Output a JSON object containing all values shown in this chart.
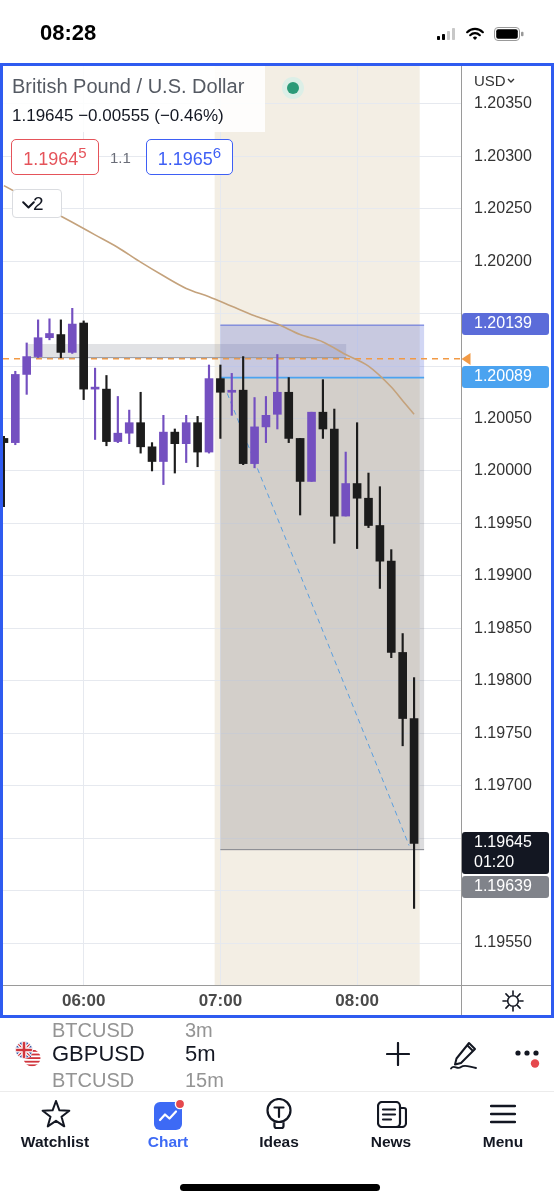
{
  "chart_data": {
    "type": "candlestick",
    "title": "British Pound / U.S. Dollar",
    "subtitle": "1.19645 −0.00555 (−0.46%)",
    "ylabel": "USD",
    "x": [
      5.4167,
      5.5,
      5.5833,
      5.6667,
      5.75,
      5.8333,
      5.9167,
      6,
      6.0833,
      6.1667,
      6.25,
      6.3333,
      6.4167,
      6.5,
      6.5833,
      6.6667,
      6.75,
      6.8333,
      6.9167,
      7,
      7.0833,
      7.1667,
      7.25,
      7.3333,
      7.4167,
      7.5,
      7.5833,
      7.6667,
      7.75,
      7.8333,
      7.9167,
      8,
      8.0833,
      8.1667,
      8.25,
      8.3333,
      8.4167
    ],
    "ohlc": [
      [
        1.20031,
        1.20033,
        1.19966,
        1.20027
      ],
      [
        1.20027,
        1.20095,
        1.20025,
        1.20092
      ],
      [
        1.20092,
        1.20122,
        1.20073,
        1.20109
      ],
      [
        1.20109,
        1.20144,
        1.20108,
        1.20127
      ],
      [
        1.20127,
        1.20145,
        1.20125,
        1.20131
      ],
      [
        1.2013,
        1.20144,
        1.20108,
        1.20113
      ],
      [
        1.20113,
        1.20155,
        1.20112,
        1.2014
      ],
      [
        1.20141,
        1.20143,
        1.20068,
        1.20078
      ],
      [
        1.20078,
        1.20098,
        1.2003,
        1.20079
      ],
      [
        1.20078,
        1.20091,
        1.20024,
        1.20028
      ],
      [
        1.20028,
        1.20071,
        1.20027,
        1.20036
      ],
      [
        1.20036,
        1.20058,
        1.20026,
        1.20046
      ],
      [
        1.20046,
        1.20075,
        1.20017,
        1.20023
      ],
      [
        1.20023,
        1.20027,
        1.2,
        1.20009
      ],
      [
        1.20009,
        1.20053,
        1.19987,
        1.20037
      ],
      [
        1.20037,
        1.2004,
        1.19998,
        1.20026
      ],
      [
        1.20026,
        1.20053,
        1.20008,
        1.20046
      ],
      [
        1.20046,
        1.20052,
        1.20004,
        1.20018
      ],
      [
        1.20018,
        1.20101,
        1.20017,
        1.20088
      ],
      [
        1.20088,
        1.20101,
        1.20031,
        1.20075
      ],
      [
        1.20075,
        1.20093,
        1.20053,
        1.20076
      ],
      [
        1.20077,
        1.20109,
        1.20006,
        1.20007
      ],
      [
        1.20007,
        1.2007,
        1.20003,
        1.20042
      ],
      [
        1.20042,
        1.20071,
        1.20027,
        1.20053
      ],
      [
        1.20054,
        1.20111,
        1.2004,
        1.20075
      ],
      [
        1.20075,
        1.20089,
        1.20027,
        1.20031
      ],
      [
        1.20031,
        1.20031,
        1.19958,
        1.1999
      ],
      [
        1.1999,
        1.20056,
        1.1999,
        1.20056
      ],
      [
        1.20056,
        1.20087,
        1.20031,
        1.2004
      ],
      [
        1.2004,
        1.20059,
        1.19931,
        1.19957
      ],
      [
        1.19957,
        1.20018,
        1.19957,
        1.19988
      ],
      [
        1.19988,
        1.20046,
        1.19926,
        1.19974
      ],
      [
        1.19974,
        1.19998,
        1.19946,
        1.19948
      ],
      [
        1.19948,
        1.19985,
        1.19888,
        1.19914
      ],
      [
        1.19914,
        1.19925,
        1.19822,
        1.19827
      ],
      [
        1.19827,
        1.19845,
        1.19738,
        1.19764
      ],
      [
        1.19764,
        1.19803,
        1.19583,
        1.19645
      ]
    ],
    "colors": [
      "#1c1c1c",
      "#7450c0",
      "#7450c0",
      "#7450c0",
      "#7450c0",
      "#1c1c1c",
      "#7450c0",
      "#1c1c1c",
      "#7450c0",
      "#1c1c1c",
      "#7450c0",
      "#7450c0",
      "#1c1c1c",
      "#1c1c1c",
      "#7450c0",
      "#1c1c1c",
      "#7450c0",
      "#1c1c1c",
      "#7450c0",
      "#1c1c1c",
      "#7450c0",
      "#1c1c1c",
      "#7450c0",
      "#7450c0",
      "#7450c0",
      "#1c1c1c",
      "#1c1c1c",
      "#7450c0",
      "#1c1c1c",
      "#1c1c1c",
      "#7450c0",
      "#1c1c1c",
      "#1c1c1c",
      "#1c1c1c",
      "#1c1c1c",
      "#1c1c1c",
      "#1c1c1c"
    ],
    "series": [
      {
        "type": "line",
        "color": "#c4a27c",
        "x": [
          5.4167,
          5.5833,
          5.75,
          5.9167,
          6.0833,
          6.25,
          6.4167,
          6.5833,
          6.75,
          6.9167,
          7.0833,
          7.25,
          7.4167,
          7.5833,
          7.75,
          7.9167,
          8.0833,
          8.25,
          8.3333,
          8.4167
        ],
        "values": [
          1.20272,
          null,
          null,
          1.20237,
          1.20225,
          1.20213,
          1.20199,
          1.20186,
          1.20174,
          1.20166,
          1.20157,
          1.20148,
          1.2014,
          1.2013,
          1.20123,
          1.20111,
          1.201,
          1.2008,
          1.20067,
          1.20054
        ]
      },
      {
        "type": "line",
        "color": "#9598a1",
        "x": [
          5.59,
          7.92
        ],
        "values": [
          1.20108,
          1.20108
        ],
        "lower": [
          1.20108,
          1.20108
        ],
        "upper": [
          1.20121,
          1.20121
        ]
      },
      {
        "type": "line",
        "color": "#5b6cd9",
        "x": [
          7,
          8.49
        ],
        "values": [
          1.20139,
          1.20139
        ],
        "lower": [
          1.20089,
          1.20089
        ],
        "upper": [
          1.20139,
          1.20139
        ]
      },
      {
        "type": "line",
        "color": "#4ba3f0",
        "x": [
          7,
          8.49
        ],
        "values": [
          1.20089,
          1.20089
        ]
      },
      {
        "type": "line",
        "color": "#80838a",
        "x": [
          7,
          8.49
        ],
        "values": [
          1.19639,
          1.19639
        ],
        "lower": [
          1.19639,
          1.19639
        ],
        "upper": [
          1.20089,
          1.20089
        ]
      },
      {
        "type": "line",
        "color": "#5a9fe0",
        "line_style": "dashed",
        "x": [
          7.05,
          8.38
        ],
        "values": [
          1.20074,
          1.19643
        ]
      }
    ],
    "xlim": [
      5.41,
      8.76
    ],
    "xticks": [
      {
        "value": 6,
        "label": "06:00"
      },
      {
        "value": 7,
        "label": "07:00"
      },
      {
        "value": 8,
        "label": "08:00"
      }
    ],
    "ylim": [
      1.1951,
      1.20386
    ],
    "yticks": [
      {
        "value": 1.1955,
        "label": "1.19550"
      },
      {
        "value": 1.196,
        "label": null
      },
      {
        "value": 1.1965,
        "label": null
      },
      {
        "value": 1.197,
        "label": "1.19700"
      },
      {
        "value": 1.1975,
        "label": "1.19750"
      },
      {
        "value": 1.198,
        "label": "1.19800"
      },
      {
        "value": 1.1985,
        "label": "1.19850"
      },
      {
        "value": 1.199,
        "label": "1.19900"
      },
      {
        "value": 1.1995,
        "label": "1.19950"
      },
      {
        "value": 1.2,
        "label": "1.20000"
      },
      {
        "value": 1.2005,
        "label": "1.20050"
      },
      {
        "value": 1.201,
        "label": null
      },
      {
        "value": 1.2015,
        "label": null
      },
      {
        "value": 1.202,
        "label": "1.20200"
      },
      {
        "value": 1.2025,
        "label": "1.20250"
      },
      {
        "value": 1.203,
        "label": "1.20300"
      },
      {
        "value": 1.2035,
        "label": "1.20350"
      }
    ],
    "grid": true,
    "bands": [
      {
        "axis": "x",
        "from": 6.958,
        "to": 8.458,
        "color": "#f3eee4"
      }
    ],
    "ref_lines": [
      {
        "axis": "y",
        "value": 1.20107,
        "color": "#f29a45",
        "line_style": "dashed"
      }
    ],
    "annotations": [
      "08:28",
      "1.1964$^{5}$",
      "1.1",
      "1.1965$^{6}$",
      "2",
      "BTCUSD",
      "3m",
      "GBPUSD",
      "5m",
      "BTCUSD",
      "15m",
      "Watchlist",
      "Chart",
      "Ideas",
      "News",
      "Menu",
      "1.19645\n01:20",
      "1.20139",
      "1.20089",
      "1.19639"
    ]
  }
}
